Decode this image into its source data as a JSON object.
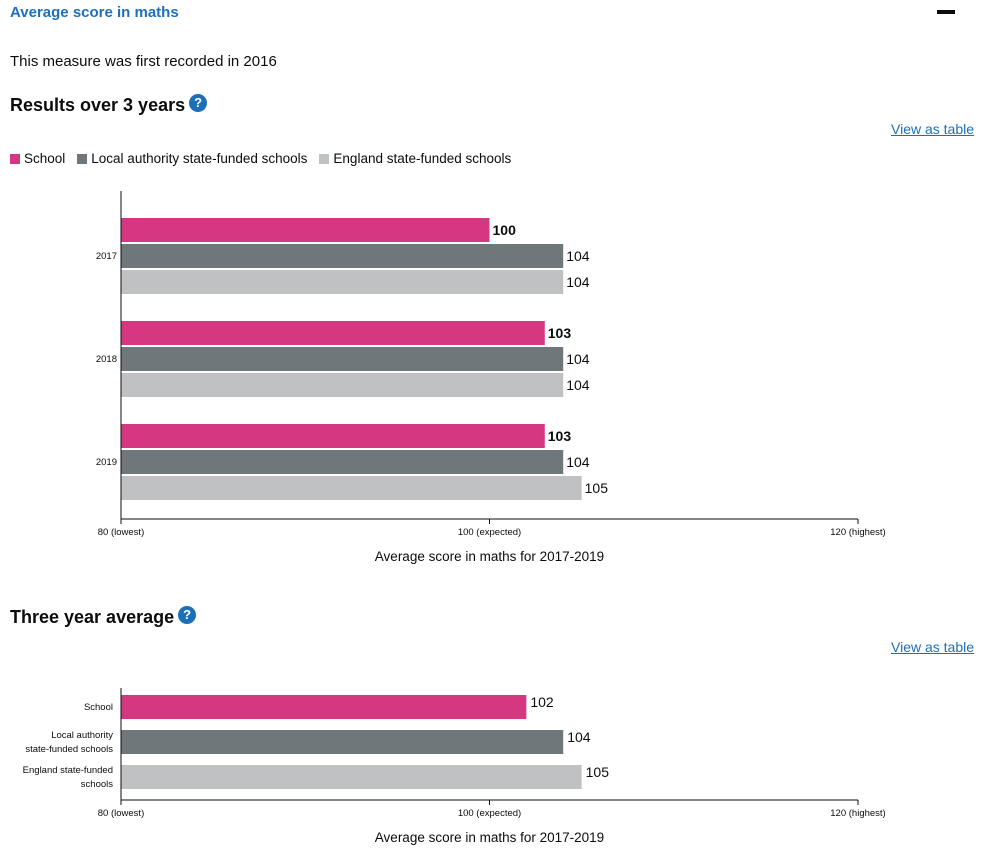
{
  "header": {
    "title": "Average score in maths",
    "collapse_icon": "minus-icon"
  },
  "first_recorded": "This measure was first recorded in 2016",
  "results": {
    "title": "Results over 3 years",
    "help_icon": "question-mark",
    "help_symbol": "?",
    "view_as_table": "View as table"
  },
  "average": {
    "title": "Three year average",
    "help_icon": "question-mark",
    "help_symbol": "?",
    "view_as_table": "View as table"
  },
  "colors": {
    "school": "#d53880",
    "local_authority": "#6f777b",
    "england": "#bfc1c3",
    "link": "#1d70b8"
  },
  "chart_data": [
    {
      "type": "bar",
      "orientation": "horizontal",
      "categories": [
        "2017",
        "2018",
        "2019"
      ],
      "series": [
        {
          "name": "School",
          "values": [
            100,
            103,
            103
          ]
        },
        {
          "name": "Local authority state-funded schools",
          "values": [
            104,
            104,
            104
          ]
        },
        {
          "name": "England state-funded schools",
          "values": [
            104,
            104,
            105
          ]
        }
      ],
      "xlim": [
        80,
        120
      ],
      "xticks": [
        {
          "value": 80,
          "label": "80 (lowest)"
        },
        {
          "value": 100,
          "label": "100 (expected)"
        },
        {
          "value": 120,
          "label": "120 (highest)"
        }
      ],
      "xlabel": "Average score in maths for 2017-2019",
      "legend": "top-left"
    },
    {
      "type": "bar",
      "orientation": "horizontal",
      "categories": [
        [
          "School"
        ],
        [
          "Local authority",
          "state-funded schools"
        ],
        [
          "England state-funded",
          "schools"
        ]
      ],
      "values": [
        102,
        104,
        105
      ],
      "xlim": [
        80,
        120
      ],
      "xticks": [
        {
          "value": 80,
          "label": "80 (lowest)"
        },
        {
          "value": 100,
          "label": "100 (expected)"
        },
        {
          "value": 120,
          "label": "120 (highest)"
        }
      ],
      "xlabel": "Average score in maths for 2017-2019"
    }
  ]
}
